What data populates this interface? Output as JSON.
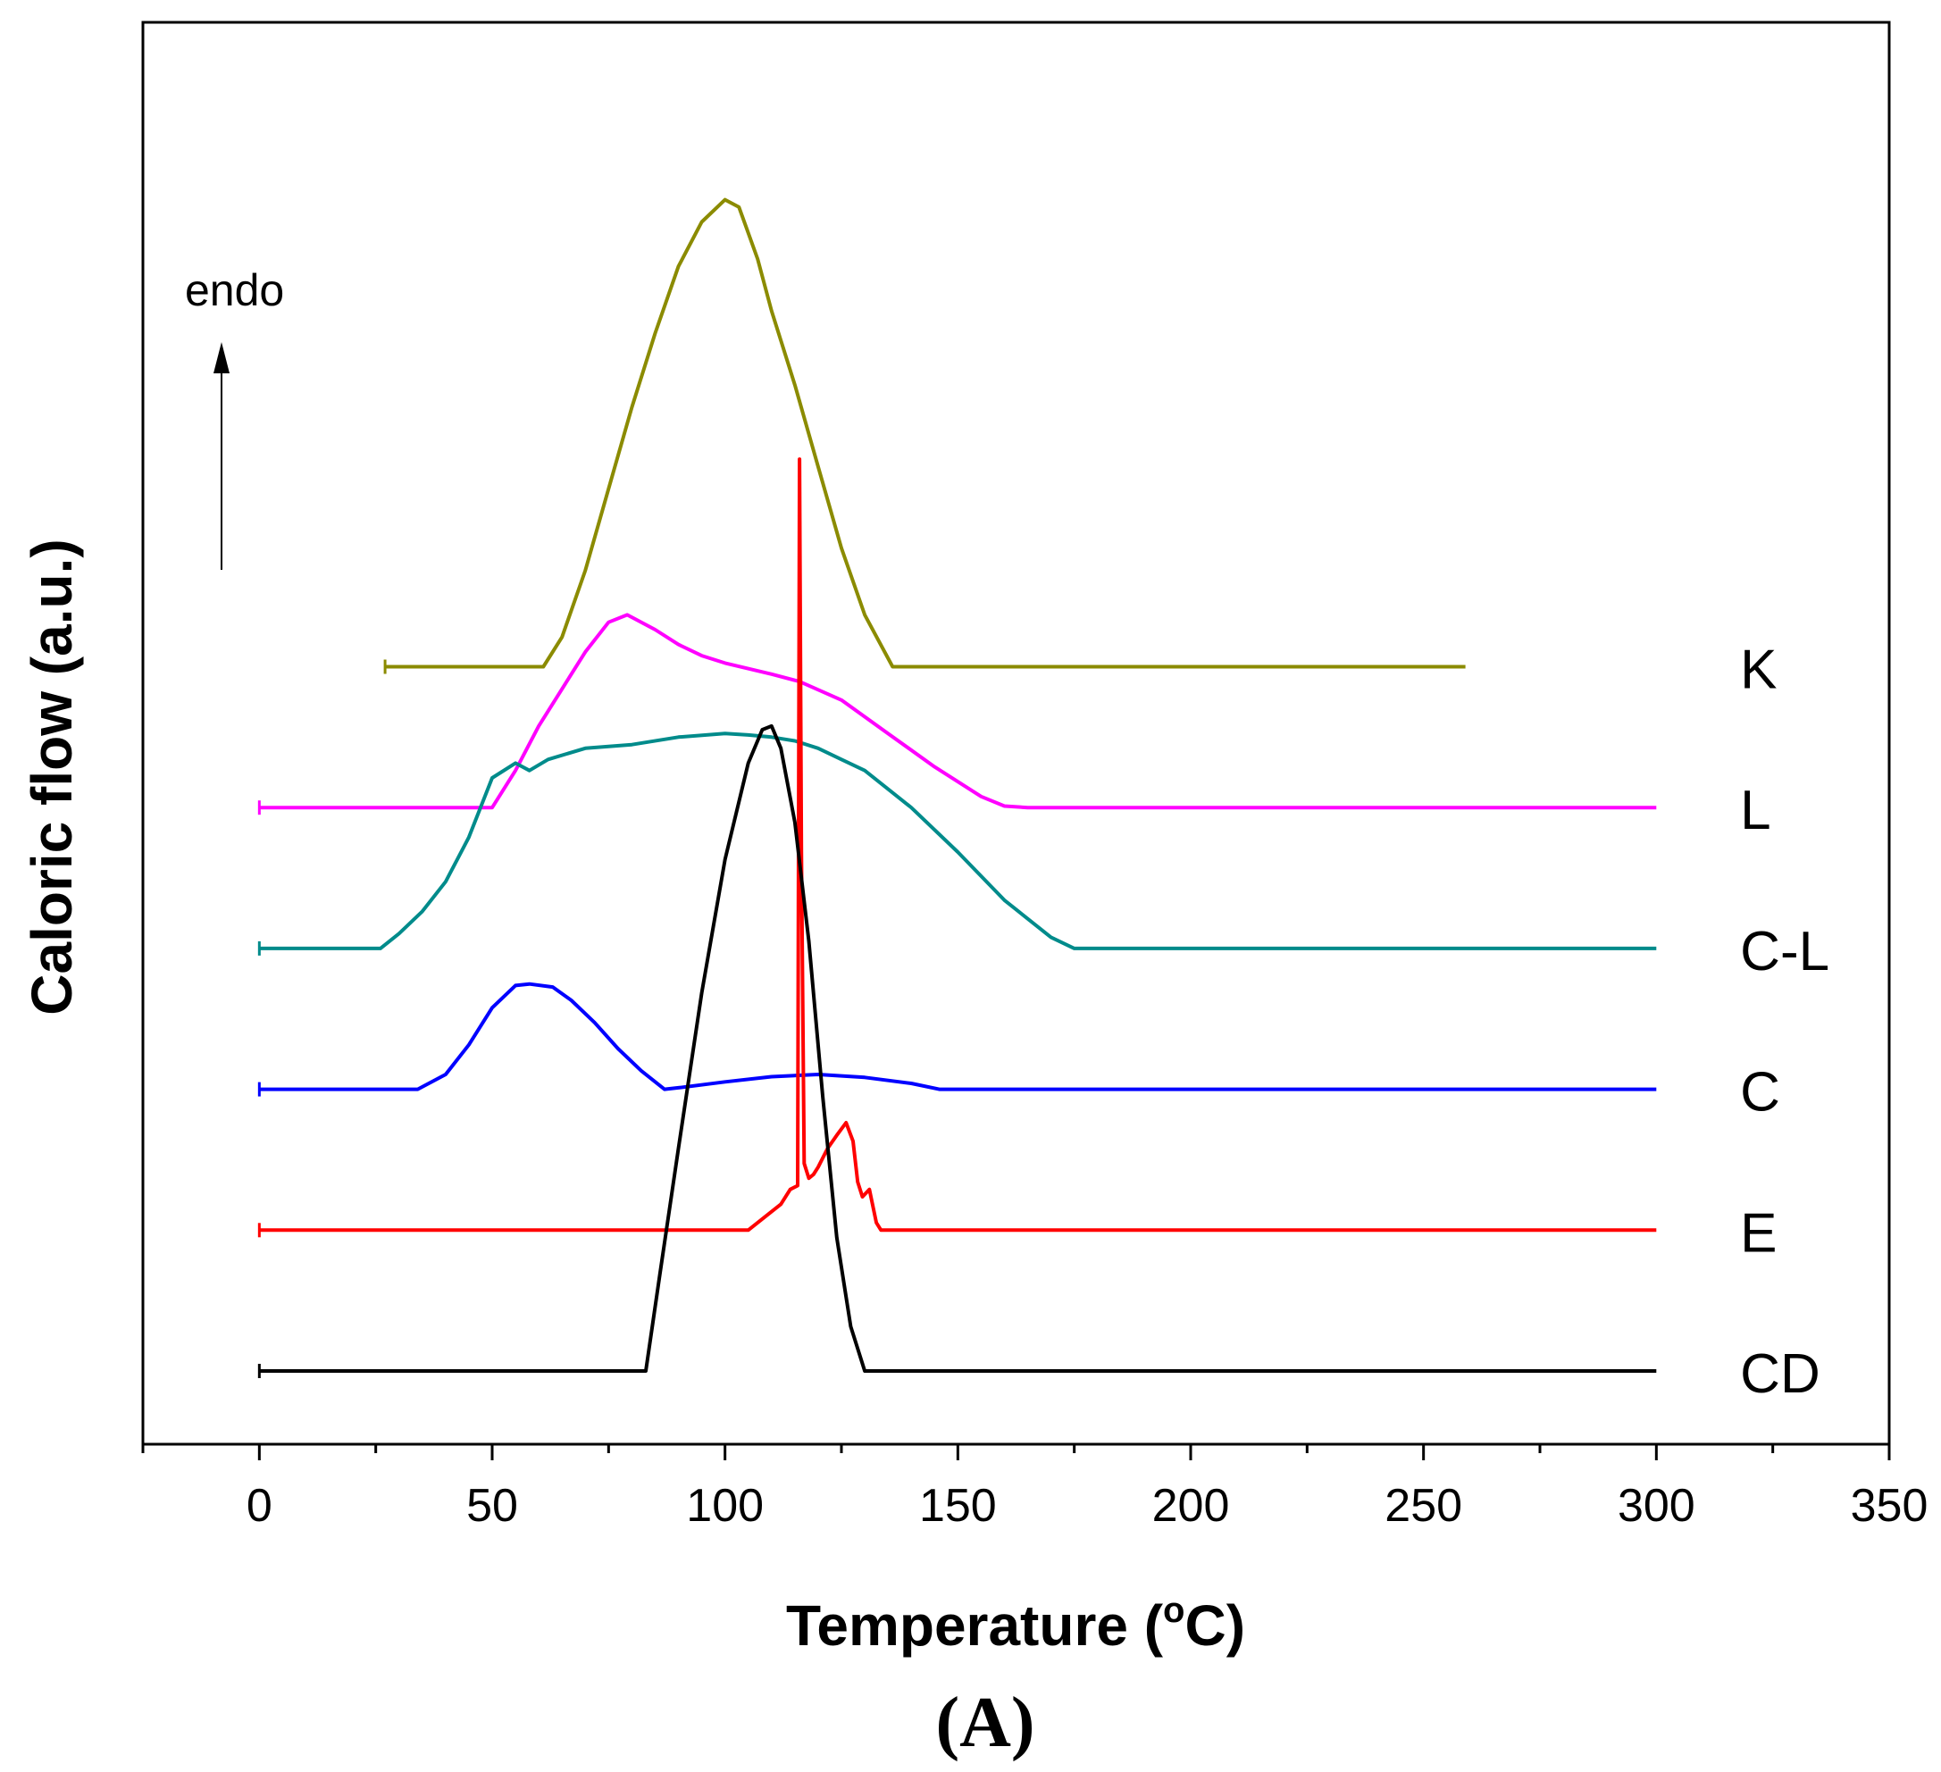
{
  "chart_data": {
    "type": "line",
    "title": "",
    "panel_label": "(A)",
    "xlabel": "Temperature (",
    "xlabel_sup": "o",
    "xlabel_end": "C)",
    "ylabel": "Caloric flow (a.u.)",
    "xlim": [
      -25,
      350
    ],
    "xticks": [
      0,
      50,
      100,
      150,
      200,
      250,
      300,
      350
    ],
    "xtick_labels": [
      "0",
      "50",
      "100",
      "150",
      "200",
      "250",
      "300",
      "350"
    ],
    "grid": false,
    "annotation": {
      "text": "endo",
      "arrow": "up"
    },
    "series": [
      {
        "name": "K",
        "label": "K",
        "color": "#8b8b00",
        "baseline": 8.0,
        "x": [
          27,
          61,
          65,
          70,
          75,
          80,
          85,
          90,
          95,
          100,
          103,
          107,
          110,
          115,
          120,
          125,
          130,
          136,
          140,
          200,
          259
        ],
        "y": [
          0,
          0,
          0.4,
          1.3,
          2.4,
          3.5,
          4.5,
          5.4,
          6.0,
          6.3,
          6.2,
          5.5,
          4.8,
          3.8,
          2.7,
          1.6,
          0.7,
          0,
          0,
          0,
          0
        ]
      },
      {
        "name": "L",
        "label": "L",
        "color": "#ff00ff",
        "baseline": 6.1,
        "x": [
          0,
          50,
          55,
          60,
          65,
          70,
          75,
          79,
          85,
          90,
          95,
          100,
          110,
          116,
          125,
          135,
          145,
          155,
          160,
          165,
          200,
          300
        ],
        "y": [
          0,
          0,
          0.5,
          1.1,
          1.6,
          2.1,
          2.5,
          2.6,
          2.4,
          2.2,
          2.05,
          1.95,
          1.8,
          1.7,
          1.45,
          1.0,
          0.55,
          0.15,
          0.02,
          0,
          0,
          0
        ]
      },
      {
        "name": "C-L",
        "label": "C-L",
        "color": "#008b8b",
        "baseline": 4.2,
        "x": [
          0,
          26,
          30,
          35,
          40,
          45,
          50,
          55,
          58,
          62,
          70,
          80,
          90,
          100,
          105,
          110,
          115,
          120,
          125,
          130,
          140,
          150,
          160,
          170,
          175,
          200,
          300
        ],
        "y": [
          0,
          0,
          0.2,
          0.5,
          0.9,
          1.5,
          2.3,
          2.5,
          2.4,
          2.55,
          2.7,
          2.75,
          2.85,
          2.9,
          2.88,
          2.85,
          2.8,
          2.7,
          2.55,
          2.4,
          1.9,
          1.3,
          0.65,
          0.15,
          0,
          0,
          0
        ]
      },
      {
        "name": "C",
        "label": "C",
        "color": "#0000ff",
        "baseline": 2.3,
        "x": [
          0,
          34,
          40,
          45,
          50,
          55,
          58,
          63,
          67,
          72,
          77,
          82,
          87,
          90,
          100,
          110,
          120,
          130,
          140,
          146,
          200,
          300
        ],
        "y": [
          0,
          0,
          0.2,
          0.6,
          1.1,
          1.4,
          1.42,
          1.38,
          1.2,
          0.9,
          0.55,
          0.25,
          0,
          0.02,
          0.1,
          0.17,
          0.2,
          0.16,
          0.08,
          0,
          0,
          0
        ]
      },
      {
        "name": "E",
        "label": "E",
        "color": "#ff0000",
        "baseline": 0.4,
        "x": [
          0,
          105,
          109,
          112,
          114,
          115.6,
          116,
          116.4,
          117,
          118,
          119,
          120,
          122,
          124,
          126,
          127.5,
          128.5,
          129.5,
          131,
          132.5,
          133.5,
          200,
          300
        ],
        "y": [
          0,
          0,
          0.2,
          0.35,
          0.55,
          0.6,
          10.4,
          5.1,
          0.9,
          0.7,
          0.75,
          0.85,
          1.1,
          1.28,
          1.45,
          1.2,
          0.65,
          0.45,
          0.55,
          0.1,
          0,
          0,
          0
        ]
      },
      {
        "name": "CD",
        "label": "CD",
        "color": "#000000",
        "baseline": -1.5,
        "x": [
          0,
          83,
          86,
          90,
          95,
          100,
          105,
          108,
          110,
          112,
          115,
          118,
          121,
          124,
          127,
          130,
          200,
          300
        ],
        "y": [
          0,
          0,
          1.3,
          3.0,
          5.1,
          6.9,
          8.2,
          8.65,
          8.7,
          8.4,
          7.4,
          5.8,
          3.7,
          1.8,
          0.6,
          0,
          0,
          0
        ]
      }
    ]
  }
}
